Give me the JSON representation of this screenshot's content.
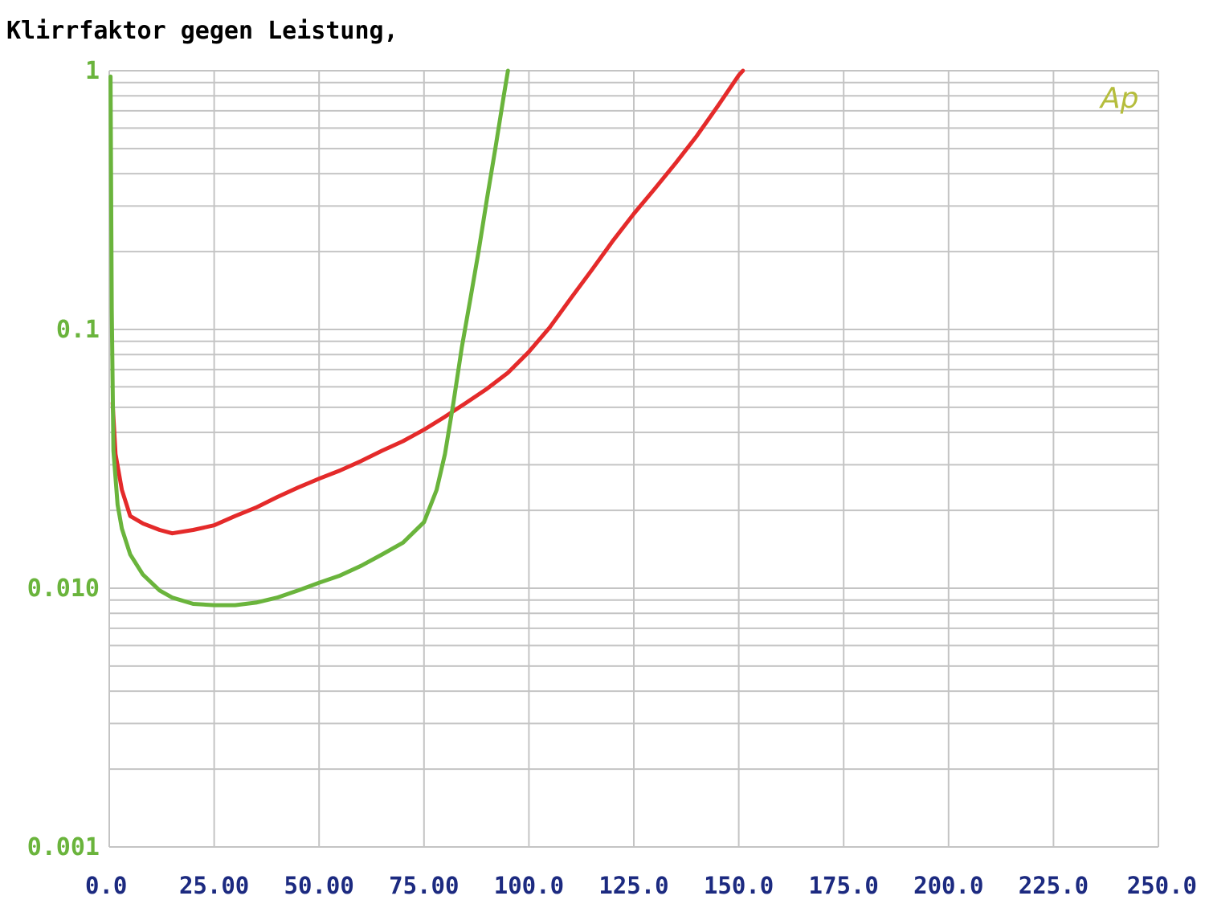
{
  "chart_data": {
    "type": "line",
    "title": "Klirrfaktor gegen Leistung,",
    "x_scale": "linear",
    "y_scale": "log",
    "xlim": [
      0,
      250
    ],
    "ylim": [
      0.001,
      1
    ],
    "x_ticks": [
      0,
      25,
      50,
      75,
      100,
      125,
      150,
      175,
      200,
      225,
      250
    ],
    "x_tick_labels": [
      "0.0",
      "25.00",
      "50.00",
      "75.00",
      "100.0",
      "125.0",
      "150.0",
      "175.0",
      "200.0",
      "225.0",
      "250.0"
    ],
    "y_ticks": [
      1,
      0.1,
      0.01,
      0.001
    ],
    "y_tick_labels": [
      "1",
      "0.1",
      "0.010",
      "0.001"
    ],
    "grid": true,
    "logo": "Ap",
    "colors": {
      "grid": "#c4c4c4",
      "y_tick": "#6ab43c",
      "x_tick": "#1c2a80",
      "logo": "#b5bd3c"
    },
    "series": [
      {
        "color": "#e42a2a",
        "x": [
          0.8,
          1.5,
          3,
          5,
          8,
          12,
          15,
          20,
          25,
          30,
          35,
          40,
          45,
          50,
          55,
          60,
          65,
          70,
          75,
          80,
          85,
          90,
          95,
          100,
          105,
          110,
          115,
          120,
          125,
          130,
          135,
          140,
          145,
          150,
          151
        ],
        "y": [
          0.052,
          0.033,
          0.024,
          0.019,
          0.0178,
          0.0168,
          0.0163,
          0.0168,
          0.0175,
          0.019,
          0.0205,
          0.0225,
          0.0245,
          0.0265,
          0.0285,
          0.031,
          0.034,
          0.037,
          0.041,
          0.046,
          0.052,
          0.059,
          0.068,
          0.082,
          0.102,
          0.132,
          0.17,
          0.22,
          0.28,
          0.35,
          0.44,
          0.56,
          0.73,
          0.96,
          1.0
        ]
      },
      {
        "color": "#6ab43c",
        "x": [
          0.3,
          0.6,
          1,
          2,
          3,
          5,
          8,
          12,
          15,
          20,
          25,
          30,
          35,
          40,
          45,
          50,
          55,
          60,
          65,
          70,
          75,
          78,
          80,
          82,
          84,
          86,
          88,
          90,
          92,
          94,
          95
        ],
        "y": [
          0.95,
          0.12,
          0.034,
          0.021,
          0.017,
          0.0135,
          0.0113,
          0.0098,
          0.0092,
          0.0087,
          0.0086,
          0.0086,
          0.0088,
          0.0092,
          0.0098,
          0.0105,
          0.0112,
          0.0122,
          0.0135,
          0.015,
          0.018,
          0.024,
          0.033,
          0.052,
          0.085,
          0.13,
          0.2,
          0.32,
          0.5,
          0.8,
          1.0
        ]
      }
    ]
  }
}
